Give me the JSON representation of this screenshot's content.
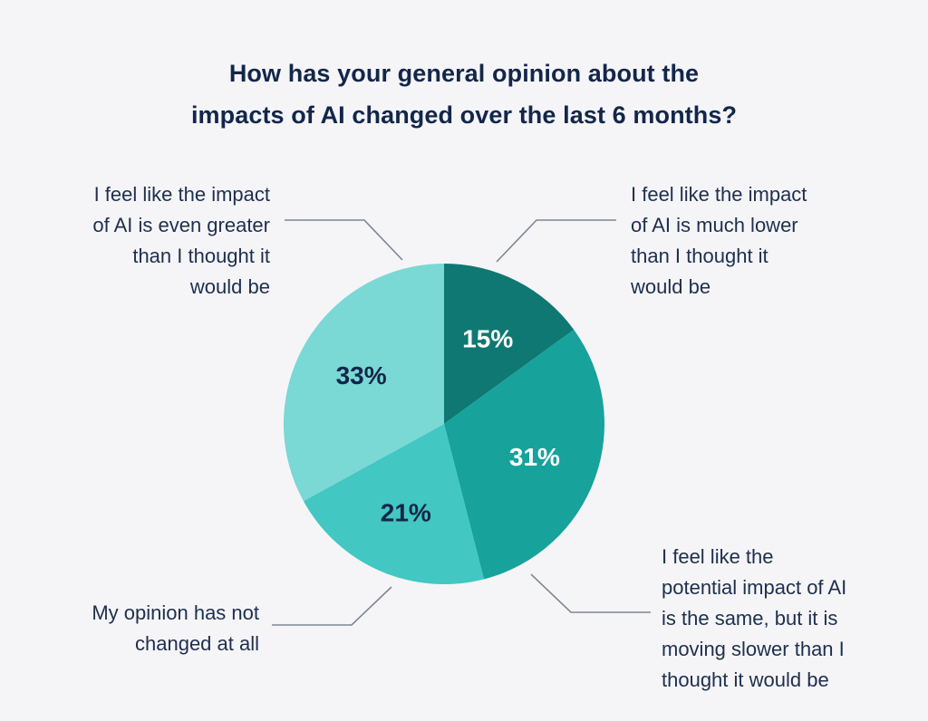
{
  "chart_data": {
    "type": "pie",
    "title_lines": [
      "How has your general opinion about the",
      "impacts of AI changed over the last 6 months?"
    ],
    "slices": [
      {
        "label_lines": [
          "I feel like the impact",
          "of AI is much lower",
          "than I thought it",
          "would be"
        ],
        "value": 15,
        "value_label": "15%",
        "color": "#0f7873",
        "text_color": "#ffffff"
      },
      {
        "label_lines": [
          "I feel like the",
          "potential impact of AI",
          "is the same, but it is",
          "moving slower than I",
          "thought it would be"
        ],
        "value": 31,
        "value_label": "31%",
        "color": "#17a29c",
        "text_color": "#ffffff"
      },
      {
        "label_lines": [
          "My opinion has not",
          "changed at all"
        ],
        "value": 21,
        "value_label": "21%",
        "color": "#42c7c3",
        "text_color": "#13264a"
      },
      {
        "label_lines": [
          "I feel like the impact",
          "of AI is even greater",
          "than I thought it",
          "would be"
        ],
        "value": 33,
        "value_label": "33%",
        "color": "#7ad8d5",
        "text_color": "#13264a"
      }
    ]
  }
}
